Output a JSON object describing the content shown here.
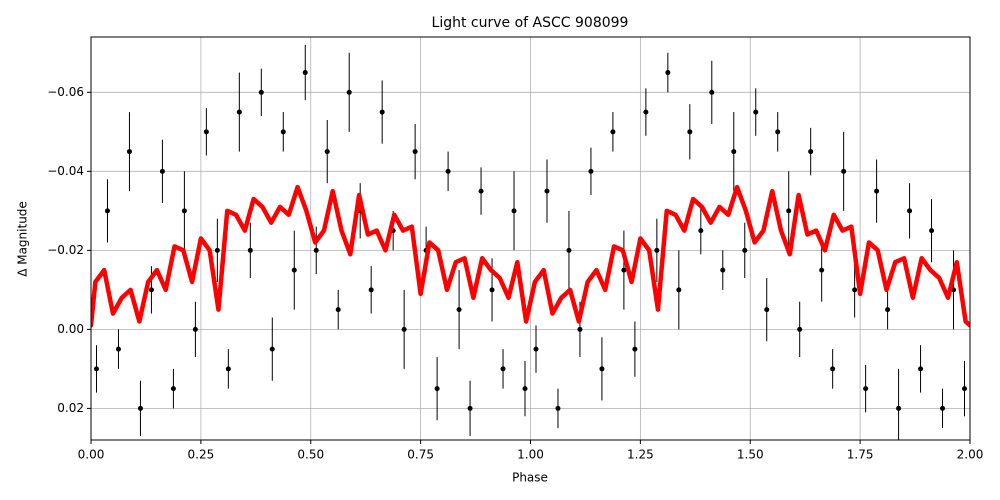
{
  "chart_data": {
    "type": "scatter",
    "title": "Light curve of ASCC 908099",
    "x_label": "Phase",
    "y_label": "Δ Magnitude",
    "xlim": [
      0,
      2
    ],
    "xticks": [
      {
        "value": 0,
        "label": "0.00"
      },
      {
        "value": 0.25,
        "label": "0.25"
      },
      {
        "value": 0.5,
        "label": "0.50"
      },
      {
        "value": 0.75,
        "label": "0.75"
      },
      {
        "value": 1,
        "label": "1.00"
      },
      {
        "value": 1.25,
        "label": "1.25"
      },
      {
        "value": 1.5,
        "label": "1.50"
      },
      {
        "value": 1.75,
        "label": "1.75"
      },
      {
        "value": 2,
        "label": "2.00"
      }
    ],
    "ylim": [
      0.028,
      -0.074
    ],
    "yticks": [
      {
        "value": -0.06,
        "label": "−0.06"
      },
      {
        "value": -0.04,
        "label": "−0.04"
      },
      {
        "value": -0.02,
        "label": "−0.02"
      },
      {
        "value": 0,
        "label": "0.00"
      },
      {
        "value": 0.02,
        "label": "0.02"
      }
    ],
    "grid": true,
    "points": {
      "color": "#000000",
      "x": [
        0.0125,
        0.0375,
        0.0625,
        0.0875,
        0.1125,
        0.1375,
        0.1625,
        0.1875,
        0.2125,
        0.2375,
        0.2625,
        0.2875,
        0.3125,
        0.3375,
        0.3625,
        0.3875,
        0.4125,
        0.4375,
        0.4625,
        0.4875,
        0.5125,
        0.5375,
        0.5625,
        0.5875,
        0.6125,
        0.6375,
        0.6625,
        0.6875,
        0.7125,
        0.7375,
        0.7625,
        0.7875,
        0.8125,
        0.8375,
        0.8625,
        0.8875,
        0.9125,
        0.9375,
        0.9625,
        0.9875,
        1.0125,
        1.0375,
        1.0625,
        1.0875,
        1.1125,
        1.1375,
        1.1625,
        1.1875,
        1.2125,
        1.2375,
        1.2625,
        1.2875,
        1.3125,
        1.3375,
        1.3625,
        1.3875,
        1.4125,
        1.4375,
        1.4625,
        1.4875,
        1.5125,
        1.5375,
        1.5625,
        1.5875,
        1.6125,
        1.6375,
        1.6625,
        1.6875,
        1.7125,
        1.7375,
        1.7625,
        1.7875,
        1.8125,
        1.8375,
        1.8625,
        1.8875,
        1.9125,
        1.9375,
        1.9625,
        1.9875
      ],
      "values": [
        0.01,
        -0.03,
        0.005,
        -0.045,
        0.02,
        -0.01,
        -0.04,
        0.015,
        -0.03,
        0.0,
        -0.05,
        -0.02,
        0.01,
        -0.055,
        -0.02,
        -0.06,
        0.005,
        -0.05,
        -0.015,
        -0.065,
        -0.02,
        -0.045,
        -0.005,
        -0.06,
        -0.03,
        -0.01,
        -0.055,
        -0.025,
        0.0,
        -0.045,
        -0.02,
        0.015,
        -0.04,
        -0.005,
        0.02,
        -0.035,
        -0.01,
        0.01,
        -0.03,
        0.015,
        0.005,
        -0.035,
        0.02,
        -0.02,
        0.0,
        -0.04,
        0.01,
        -0.05,
        -0.015,
        0.005,
        -0.055,
        -0.02,
        -0.065,
        -0.01,
        -0.05,
        -0.025,
        -0.06,
        -0.015,
        -0.045,
        -0.02,
        -0.055,
        -0.005,
        -0.05,
        -0.03,
        0.0,
        -0.045,
        -0.015,
        0.01,
        -0.04,
        -0.01,
        0.015,
        -0.035,
        -0.005,
        0.02,
        -0.03,
        0.01,
        -0.025,
        0.02,
        -0.01,
        0.015
      ],
      "yerr": [
        0.006,
        0.008,
        0.005,
        0.01,
        0.007,
        0.006,
        0.008,
        0.005,
        0.01,
        0.007,
        0.006,
        0.008,
        0.005,
        0.01,
        0.007,
        0.006,
        0.008,
        0.005,
        0.01,
        0.007,
        0.006,
        0.008,
        0.005,
        0.01,
        0.007,
        0.006,
        0.008,
        0.005,
        0.01,
        0.007,
        0.006,
        0.008,
        0.005,
        0.01,
        0.007,
        0.006,
        0.008,
        0.005,
        0.01,
        0.007,
        0.006,
        0.008,
        0.005,
        0.01,
        0.007,
        0.006,
        0.008,
        0.005,
        0.01,
        0.007,
        0.006,
        0.008,
        0.005,
        0.01,
        0.007,
        0.006,
        0.008,
        0.005,
        0.01,
        0.007,
        0.006,
        0.008,
        0.005,
        0.01,
        0.007,
        0.006,
        0.008,
        0.005,
        0.01,
        0.007,
        0.006,
        0.008,
        0.005,
        0.01,
        0.007,
        0.006,
        0.008,
        0.005,
        0.01,
        0.007
      ]
    },
    "fit": {
      "color": "#ff0000",
      "x": [
        0,
        0.01,
        0.03,
        0.05,
        0.07,
        0.09,
        0.11,
        0.13,
        0.15,
        0.17,
        0.19,
        0.21,
        0.23,
        0.25,
        0.27,
        0.29,
        0.31,
        0.33,
        0.35,
        0.37,
        0.39,
        0.41,
        0.43,
        0.45,
        0.47,
        0.49,
        0.51,
        0.53,
        0.55,
        0.57,
        0.59,
        0.61,
        0.63,
        0.65,
        0.67,
        0.69,
        0.71,
        0.73,
        0.75,
        0.77,
        0.79,
        0.81,
        0.83,
        0.85,
        0.87,
        0.89,
        0.91,
        0.93,
        0.95,
        0.97,
        0.99,
        1.01,
        1.03,
        1.05,
        1.07,
        1.09,
        1.11,
        1.13,
        1.15,
        1.17,
        1.19,
        1.21,
        1.23,
        1.25,
        1.27,
        1.29,
        1.31,
        1.33,
        1.35,
        1.37,
        1.39,
        1.41,
        1.43,
        1.45,
        1.47,
        1.49,
        1.51,
        1.53,
        1.55,
        1.57,
        1.59,
        1.61,
        1.63,
        1.65,
        1.67,
        1.69,
        1.71,
        1.73,
        1.75,
        1.77,
        1.79,
        1.81,
        1.83,
        1.85,
        1.87,
        1.89,
        1.91,
        1.93,
        1.95,
        1.97,
        1.99,
        2
      ],
      "values": [
        -0.001,
        -0.012,
        -0.015,
        -0.004,
        -0.008,
        -0.01,
        -0.002,
        -0.012,
        -0.015,
        -0.01,
        -0.021,
        -0.02,
        -0.012,
        -0.023,
        -0.02,
        -0.005,
        -0.03,
        -0.029,
        -0.025,
        -0.033,
        -0.031,
        -0.027,
        -0.031,
        -0.029,
        -0.036,
        -0.03,
        -0.022,
        -0.025,
        -0.035,
        -0.025,
        -0.019,
        -0.034,
        -0.024,
        -0.025,
        -0.02,
        -0.029,
        -0.025,
        -0.026,
        -0.009,
        -0.022,
        -0.02,
        -0.01,
        -0.017,
        -0.018,
        -0.008,
        -0.018,
        -0.015,
        -0.013,
        -0.008,
        -0.017,
        -0.002,
        -0.012,
        -0.015,
        -0.004,
        -0.008,
        -0.01,
        -0.002,
        -0.012,
        -0.015,
        -0.01,
        -0.021,
        -0.02,
        -0.012,
        -0.023,
        -0.02,
        -0.005,
        -0.03,
        -0.029,
        -0.025,
        -0.033,
        -0.031,
        -0.027,
        -0.031,
        -0.029,
        -0.036,
        -0.03,
        -0.022,
        -0.025,
        -0.035,
        -0.025,
        -0.019,
        -0.034,
        -0.024,
        -0.025,
        -0.02,
        -0.029,
        -0.025,
        -0.026,
        -0.009,
        -0.022,
        -0.02,
        -0.01,
        -0.017,
        -0.018,
        -0.008,
        -0.018,
        -0.015,
        -0.013,
        -0.008,
        -0.017,
        -0.002,
        -0.001
      ]
    }
  }
}
